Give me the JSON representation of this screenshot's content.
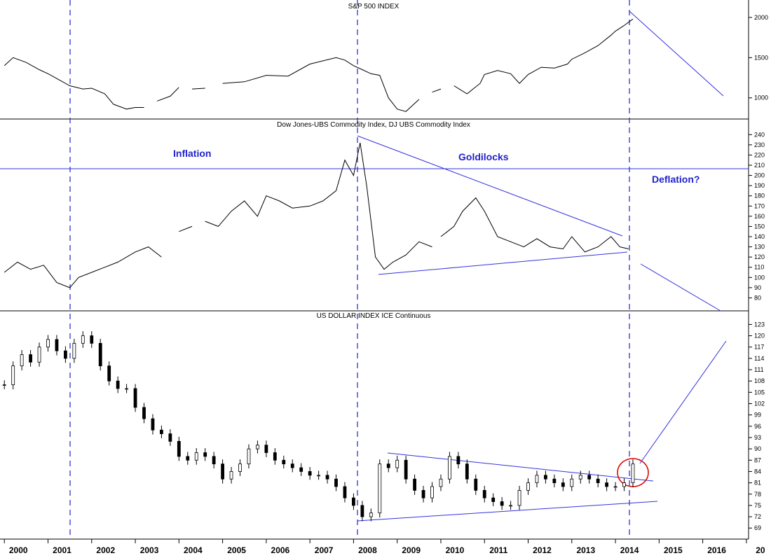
{
  "chart_data": [
    {
      "type": "line",
      "title": "S&P 500 INDEX",
      "yticks": [
        1000,
        1500,
        2000
      ],
      "ylim": [
        780,
        2060
      ],
      "x": [
        2000.0,
        2000.2,
        2000.5,
        2000.8,
        2001.0,
        2001.2,
        2001.5,
        2001.8,
        2002.0,
        2002.3,
        2002.5,
        2002.8,
        2003.0,
        2003.2,
        2003.5,
        2003.8,
        2004.0,
        2004.3,
        2004.6,
        2004.9,
        2005.0,
        2005.5,
        2006.0,
        2006.5,
        2007.0,
        2007.3,
        2007.6,
        2007.8,
        2008.0,
        2008.2,
        2008.4,
        2008.6,
        2008.8,
        2009.0,
        2009.2,
        2009.5,
        2009.8,
        2010.0,
        2010.3,
        2010.6,
        2010.9,
        2011.0,
        2011.3,
        2011.6,
        2011.8,
        2012.0,
        2012.3,
        2012.6,
        2012.9,
        2013.0,
        2013.3,
        2013.6,
        2013.9,
        2014.0,
        2014.2,
        2014.4
      ],
      "values": [
        1400,
        1500,
        1440,
        1350,
        1300,
        1240,
        1150,
        1110,
        1120,
        1050,
        920,
        860,
        880,
        880,
        960,
        1020,
        1130,
        1110,
        1120,
        1180,
        1180,
        1200,
        1280,
        1270,
        1420,
        1460,
        1500,
        1470,
        1400,
        1350,
        1300,
        1280,
        1000,
        860,
        830,
        980,
        1070,
        1110,
        1150,
        1050,
        1180,
        1290,
        1340,
        1300,
        1180,
        1290,
        1380,
        1370,
        1420,
        1480,
        1560,
        1650,
        1780,
        1830,
        1900,
        1980
      ],
      "gaps": [
        2003.5,
        2004.3,
        2005.0,
        2009.8,
        2010.3
      ]
    },
    {
      "type": "line",
      "title": "Dow Jones-UBS Commodity Index, DJ UBS Commodity Index",
      "yticks": [
        80,
        90,
        100,
        110,
        120,
        130,
        140,
        150,
        160,
        170,
        180,
        190,
        200,
        210,
        220,
        230,
        240
      ],
      "ylim": [
        70,
        245
      ],
      "x": [
        2000.0,
        2000.3,
        2000.6,
        2000.9,
        2001.2,
        2001.5,
        2001.7,
        2002.0,
        2002.3,
        2002.6,
        2003.0,
        2003.3,
        2003.6,
        2004.0,
        2004.3,
        2004.6,
        2004.9,
        2005.2,
        2005.5,
        2005.8,
        2006.0,
        2006.3,
        2006.6,
        2007.0,
        2007.3,
        2007.6,
        2007.8,
        2008.0,
        2008.15,
        2008.3,
        2008.5,
        2008.7,
        2008.9,
        2009.2,
        2009.5,
        2009.8,
        2010.0,
        2010.3,
        2010.5,
        2010.8,
        2011.0,
        2011.3,
        2011.6,
        2011.9,
        2012.2,
        2012.5,
        2012.8,
        2013.0,
        2013.3,
        2013.6,
        2013.9,
        2014.1,
        2014.3
      ],
      "values": [
        105,
        115,
        108,
        112,
        95,
        90,
        100,
        105,
        110,
        115,
        125,
        130,
        120,
        145,
        150,
        155,
        150,
        165,
        175,
        160,
        180,
        175,
        168,
        170,
        175,
        185,
        215,
        200,
        232,
        190,
        120,
        108,
        115,
        122,
        135,
        130,
        140,
        150,
        165,
        178,
        165,
        140,
        135,
        130,
        138,
        130,
        128,
        140,
        125,
        130,
        140,
        130,
        128
      ],
      "gaps": [
        2003.9,
        2004.7,
        2010.1
      ]
    },
    {
      "type": "candlestick",
      "title": "US DOLLAR INDEX ICE Continuous",
      "yticks": [
        69,
        72,
        75,
        78,
        81,
        84,
        87,
        90,
        93,
        96,
        99,
        102,
        105,
        108,
        111,
        114,
        117,
        120,
        123
      ],
      "ylim": [
        67,
        124
      ],
      "x": [
        2000.0,
        2000.2,
        2000.4,
        2000.6,
        2000.8,
        2001.0,
        2001.2,
        2001.4,
        2001.6,
        2001.8,
        2002.0,
        2002.2,
        2002.4,
        2002.6,
        2002.8,
        2003.0,
        2003.2,
        2003.4,
        2003.6,
        2003.8,
        2004.0,
        2004.2,
        2004.4,
        2004.6,
        2004.8,
        2005.0,
        2005.2,
        2005.4,
        2005.6,
        2005.8,
        2006.0,
        2006.2,
        2006.4,
        2006.6,
        2006.8,
        2007.0,
        2007.2,
        2007.4,
        2007.6,
        2007.8,
        2008.0,
        2008.2,
        2008.4,
        2008.6,
        2008.8,
        2009.0,
        2009.2,
        2009.4,
        2009.6,
        2009.8,
        2010.0,
        2010.2,
        2010.4,
        2010.6,
        2010.8,
        2011.0,
        2011.2,
        2011.4,
        2011.6,
        2011.8,
        2012.0,
        2012.2,
        2012.4,
        2012.6,
        2012.8,
        2013.0,
        2013.2,
        2013.4,
        2013.6,
        2013.8,
        2014.0,
        2014.2,
        2014.4
      ],
      "values": [
        107,
        112,
        115,
        113,
        117,
        119,
        116,
        114,
        118,
        120,
        118,
        112,
        108,
        106,
        106,
        101,
        98,
        95,
        94,
        92,
        88,
        87,
        89,
        88,
        86,
        82,
        84,
        86,
        90,
        91,
        89,
        87,
        86,
        85,
        84,
        83,
        83,
        82,
        80,
        77,
        75,
        72,
        73,
        86,
        85,
        87,
        82,
        79,
        77,
        80,
        82,
        88,
        86,
        82,
        79,
        77,
        76,
        75,
        75,
        79,
        81,
        83,
        82,
        81,
        80,
        82,
        83,
        82,
        81,
        80,
        80,
        81,
        86
      ]
    }
  ],
  "x_axis": {
    "ticks": [
      "2000",
      "2001",
      "2002",
      "2003",
      "2004",
      "2005",
      "2006",
      "2007",
      "2008",
      "2009",
      "2010",
      "2011",
      "2012",
      "2013",
      "2014",
      "2015",
      "2016",
      "20"
    ],
    "range": [
      1999.9,
      2017.05
    ]
  },
  "annotations": {
    "inflation": "Inflation",
    "goldilocks": "Goldilocks",
    "deflation": "Deflation?"
  },
  "colors": {
    "price_line": "#000000",
    "annotation": "#2222cc",
    "trendline": "#3333dd",
    "highlight_circle": "#dd0000"
  }
}
